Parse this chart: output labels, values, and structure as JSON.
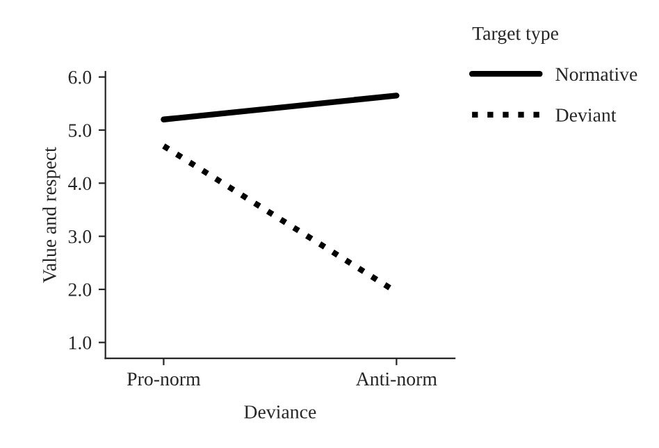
{
  "chart_data": {
    "type": "line",
    "xlabel": "Deviance",
    "ylabel": "Value and respect",
    "legend_title": "Target type",
    "legend": "top right",
    "categories": [
      "Pro-norm",
      "Anti-norm"
    ],
    "series": [
      {
        "name": "Normative",
        "color": "#000000",
        "line_style": "solid",
        "values": [
          5.2,
          5.65
        ]
      },
      {
        "name": "Deviant",
        "color": "#000000",
        "line_style": "dotted",
        "values": [
          4.7,
          1.95
        ]
      }
    ],
    "ylim": [
      0.7,
      6.1
    ],
    "yticks": [
      {
        "value": 1,
        "label": "1.0"
      },
      {
        "value": 2,
        "label": "2.0"
      },
      {
        "value": 3,
        "label": "3.0"
      },
      {
        "value": 4,
        "label": "4.0"
      },
      {
        "value": 5,
        "label": "5.0"
      },
      {
        "value": 6,
        "label": "6.0"
      }
    ],
    "grid": false
  }
}
